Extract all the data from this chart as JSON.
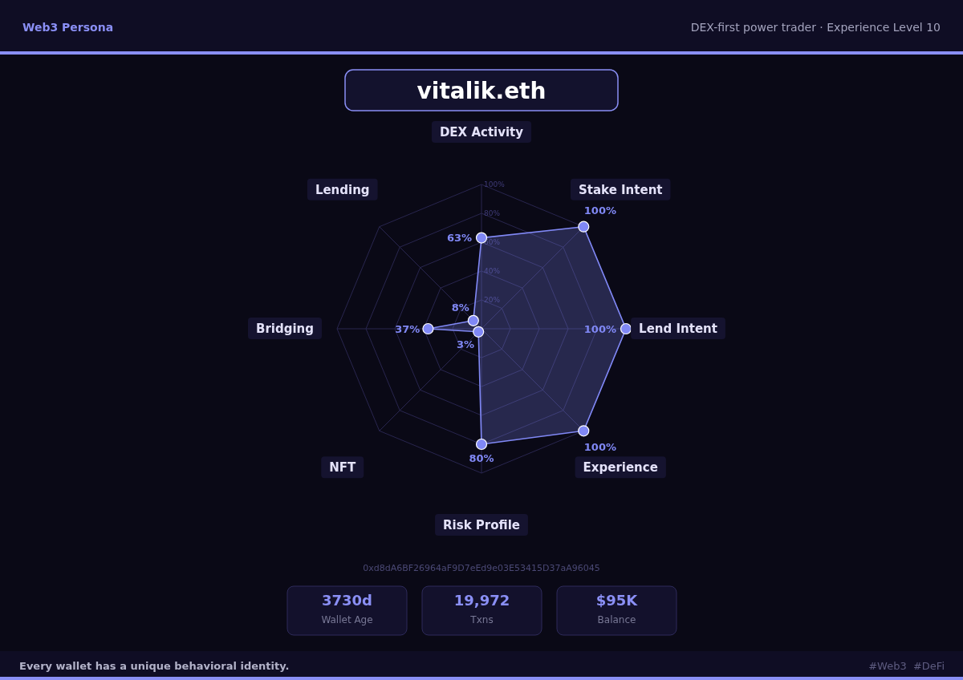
{
  "chart_data": {
    "type": "radar",
    "title": "vitalik.eth",
    "subtitle": "DEX-first power trader · Experience Level 10",
    "categories": [
      "DEX Activity",
      "Stake Intent",
      "Lend Intent",
      "Experience",
      "Risk Profile",
      "NFT",
      "Bridging",
      "Lending"
    ],
    "series": [
      {
        "color": "#8088f5",
        "values": [
          63,
          100,
          100,
          100,
          80,
          3,
          37,
          8
        ],
        "value_labels": [
          "63%",
          "100%",
          "100%",
          "100%",
          "80%",
          "3%",
          "37%",
          "8%"
        ]
      }
    ],
    "ylim": [
      0,
      100
    ],
    "yticks": [
      {
        "value": 20,
        "label": "20%"
      },
      {
        "value": 40,
        "label": "40%"
      },
      {
        "value": 60,
        "label": "60%"
      },
      {
        "value": 80,
        "label": "80%"
      },
      {
        "value": 100,
        "label": "100%"
      }
    ],
    "grid": true,
    "marker": "circle",
    "annotations": [
      "Web3 Persona",
      "0xd8dA6BF26964aF9D7eEd9e03E53415D37aA96045",
      "3730d",
      "Wallet Age",
      "19,972",
      "Txns",
      "$95K",
      "Balance",
      "Every wallet has a unique behavioral identity.",
      "#Web3  #DeFi"
    ]
  }
}
